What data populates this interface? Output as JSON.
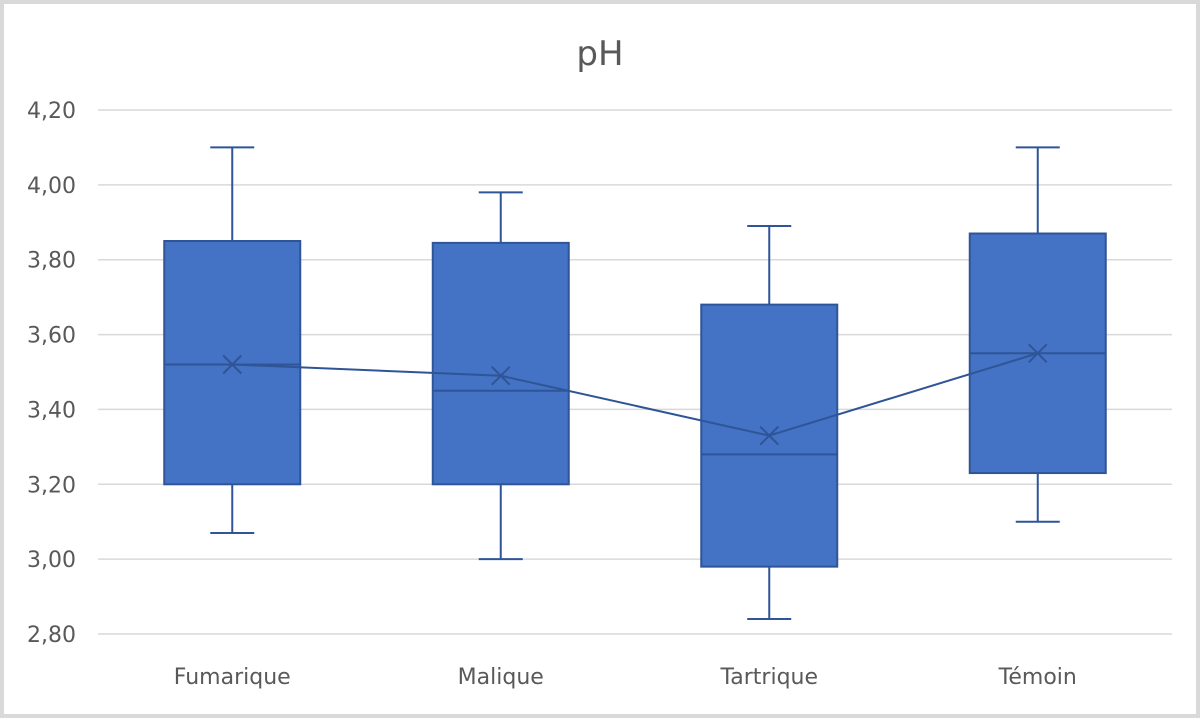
{
  "chart_data": {
    "type": "box",
    "title": "pH",
    "xlabel": "",
    "ylabel": "",
    "ylim": [
      2.8,
      4.2
    ],
    "yticks": [
      "2,80",
      "3,00",
      "3,20",
      "3,40",
      "3,60",
      "3,80",
      "4,00",
      "4,20"
    ],
    "ytick_values": [
      2.8,
      3.0,
      3.2,
      3.4,
      3.6,
      3.8,
      4.0,
      4.2
    ],
    "grid": true,
    "legend": "none",
    "colors": {
      "box_fill": "#4472C4",
      "box_edge": "#2F5597",
      "grid": "#D9D9D9"
    },
    "categories": [
      "Fumarique",
      "Malique",
      "Tartrique",
      "Témoin"
    ],
    "boxes": [
      {
        "min": 3.07,
        "q1": 3.2,
        "median": 3.52,
        "q3": 3.85,
        "max": 4.1,
        "mean": 3.52
      },
      {
        "min": 3.0,
        "q1": 3.2,
        "median": 3.45,
        "q3": 3.845,
        "max": 3.98,
        "mean": 3.49
      },
      {
        "min": 2.84,
        "q1": 2.98,
        "median": 3.28,
        "q3": 3.68,
        "max": 3.89,
        "mean": 3.33
      },
      {
        "min": 3.1,
        "q1": 3.23,
        "median": 3.55,
        "q3": 3.87,
        "max": 4.1,
        "mean": 3.55
      }
    ]
  }
}
